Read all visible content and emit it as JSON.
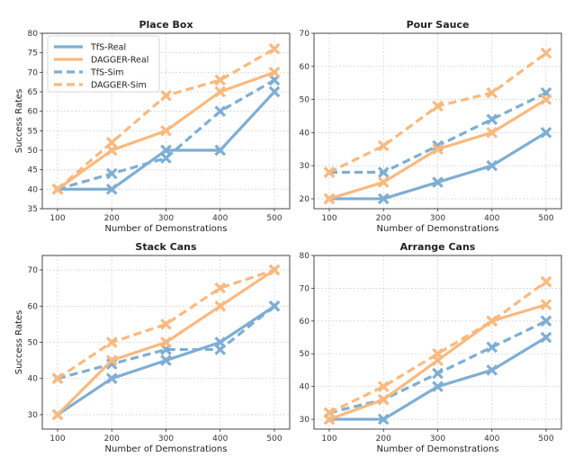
{
  "chart_data": [
    {
      "type": "line",
      "title": "Place Box",
      "xlabel": "Number of Demonstrations",
      "ylabel": "Success Rates",
      "x": [
        100,
        200,
        300,
        400,
        500
      ],
      "x_tick_labels": [
        "100",
        "200",
        "300",
        "400",
        "500"
      ],
      "ylim": [
        35,
        80
      ],
      "y_ticks": [
        35,
        40,
        45,
        50,
        55,
        60,
        65,
        70,
        75,
        80
      ],
      "y_tick_labels": [
        "35",
        "40",
        "45",
        "50",
        "55",
        "60",
        "65",
        "70",
        "75",
        "80"
      ],
      "grid": true,
      "legend": "top-left",
      "series": [
        {
          "name": "TfS-Real",
          "values": [
            40,
            40,
            50,
            50,
            65
          ]
        },
        {
          "name": "DAGGER-Real",
          "values": [
            40,
            50,
            55,
            65,
            70
          ]
        },
        {
          "name": "TfS-Sim",
          "values": [
            40,
            44,
            48,
            60,
            68
          ]
        },
        {
          "name": "DAGGER-Sim",
          "values": [
            40,
            52,
            64,
            68,
            76
          ]
        }
      ]
    },
    {
      "type": "line",
      "title": "Pour Sauce",
      "xlabel": "Number of Demonstrations",
      "ylabel": "",
      "x": [
        100,
        200,
        300,
        400,
        500
      ],
      "x_tick_labels": [
        "100",
        "200",
        "300",
        "400",
        "500"
      ],
      "ylim": [
        17,
        70
      ],
      "y_ticks": [
        20,
        30,
        40,
        50,
        60,
        70
      ],
      "y_tick_labels": [
        "20",
        "30",
        "40",
        "50",
        "60",
        "70"
      ],
      "grid": true,
      "series": [
        {
          "name": "TfS-Real",
          "values": [
            20,
            20,
            25,
            30,
            40
          ]
        },
        {
          "name": "DAGGER-Real",
          "values": [
            20,
            25,
            35,
            40,
            50
          ]
        },
        {
          "name": "TfS-Sim",
          "values": [
            28,
            28,
            36,
            44,
            52
          ]
        },
        {
          "name": "DAGGER-Sim",
          "values": [
            28,
            36,
            48,
            52,
            64
          ]
        }
      ]
    },
    {
      "type": "line",
      "title": "Stack Cans",
      "xlabel": "Number of Demonstrations",
      "ylabel": "Success Rates",
      "x": [
        100,
        200,
        300,
        400,
        500
      ],
      "x_tick_labels": [
        "100",
        "200",
        "300",
        "400",
        "500"
      ],
      "ylim": [
        26,
        74
      ],
      "y_ticks": [
        30,
        40,
        50,
        60,
        70
      ],
      "y_tick_labels": [
        "30",
        "40",
        "50",
        "60",
        "70"
      ],
      "grid": true,
      "series": [
        {
          "name": "TfS-Real",
          "values": [
            30,
            40,
            45,
            50,
            60
          ]
        },
        {
          "name": "DAGGER-Real",
          "values": [
            30,
            45,
            50,
            60,
            70
          ]
        },
        {
          "name": "TfS-Sim",
          "values": [
            40,
            44,
            48,
            48,
            60
          ]
        },
        {
          "name": "DAGGER-Sim",
          "values": [
            40,
            50,
            55,
            65,
            70
          ]
        }
      ]
    },
    {
      "type": "line",
      "title": "Arrange Cans",
      "xlabel": "Number of Demonstrations",
      "ylabel": "",
      "x": [
        100,
        200,
        300,
        400,
        500
      ],
      "x_tick_labels": [
        "100",
        "200",
        "300",
        "400",
        "500"
      ],
      "ylim": [
        27,
        80
      ],
      "y_ticks": [
        30,
        40,
        50,
        60,
        70,
        80
      ],
      "y_tick_labels": [
        "30",
        "40",
        "50",
        "60",
        "70",
        "80"
      ],
      "grid": true,
      "series": [
        {
          "name": "TfS-Real",
          "values": [
            30,
            30,
            40,
            45,
            55
          ]
        },
        {
          "name": "DAGGER-Real",
          "values": [
            30,
            36,
            48,
            60,
            65
          ]
        },
        {
          "name": "TfS-Sim",
          "values": [
            32,
            36,
            44,
            52,
            60
          ]
        },
        {
          "name": "DAGGER-Sim",
          "values": [
            32,
            40,
            50,
            60,
            72
          ]
        }
      ]
    }
  ],
  "series_styles": [
    {
      "name": "TfS-Real",
      "color": "#7eaed3",
      "dashed": false
    },
    {
      "name": "DAGGER-Real",
      "color": "#f9b97e",
      "dashed": false
    },
    {
      "name": "TfS-Sim",
      "color": "#7eaed3",
      "dashed": true
    },
    {
      "name": "DAGGER-Sim",
      "color": "#f9b97e",
      "dashed": true
    }
  ]
}
